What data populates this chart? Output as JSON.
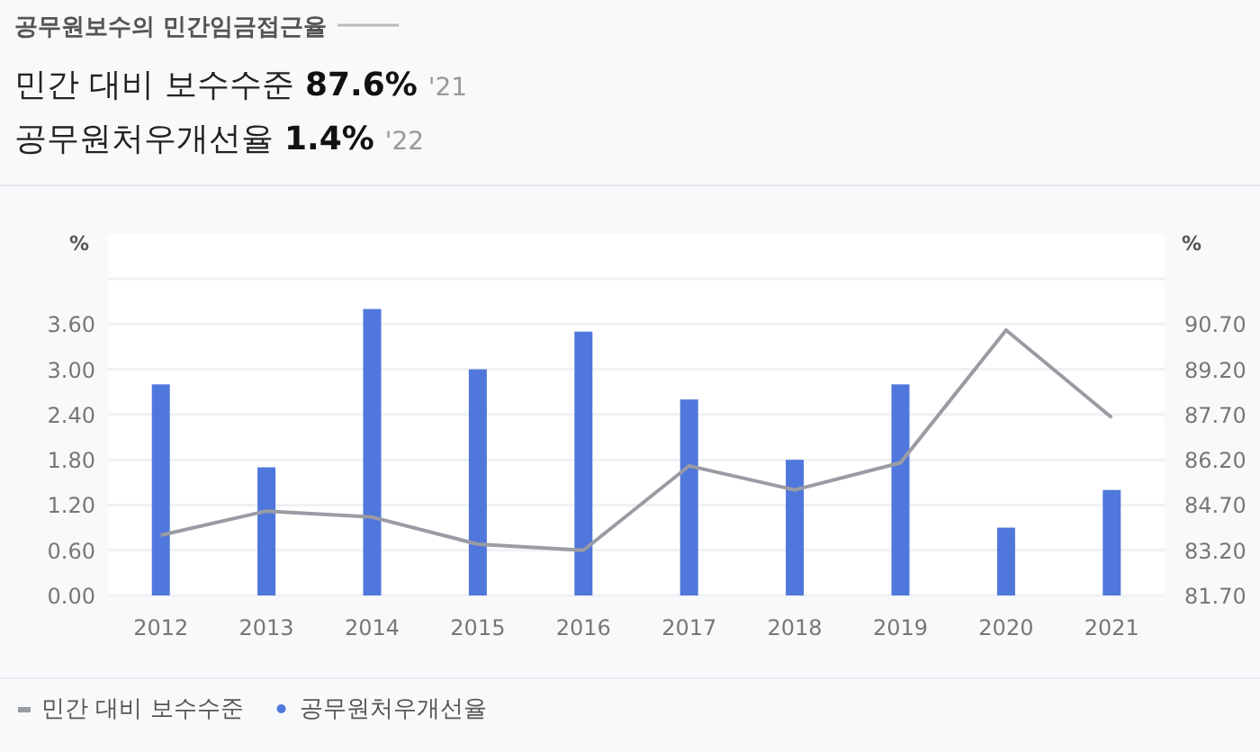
{
  "chart_data": {
    "type": "bar",
    "title": "공무원보수의 민간임금접근율",
    "annotations": [
      "민간 대비 보수수준",
      "87.6%",
      "'21",
      "공무원처우개선율",
      "1.4%",
      "'22"
    ],
    "categories": [
      "2012",
      "2013",
      "2014",
      "2015",
      "2016",
      "2017",
      "2018",
      "2019",
      "2020",
      "2021"
    ],
    "series": [
      {
        "name": "민간 대비 보수수준",
        "type": "line",
        "axis": "y2",
        "color": "#9a9ca3",
        "values": [
          83.7,
          84.5,
          84.3,
          83.4,
          83.2,
          86.0,
          85.2,
          86.1,
          90.5,
          87.6
        ]
      },
      {
        "name": "공무원처우개선율",
        "color": "#5077db",
        "values": [
          2.8,
          1.7,
          3.8,
          3.0,
          3.5,
          2.6,
          1.8,
          2.8,
          0.9,
          1.4
        ]
      }
    ],
    "ylabel": "%",
    "y2label": "%",
    "ylim": [
      0,
      4.2
    ],
    "yticks": [
      {
        "value": 0,
        "label": "0.00"
      },
      {
        "value": 0.6,
        "label": "0.60"
      },
      {
        "value": 1.2,
        "label": "1.20"
      },
      {
        "value": 1.8,
        "label": "1.80"
      },
      {
        "value": 2.4,
        "label": "2.40"
      },
      {
        "value": 3.0,
        "label": "3.00"
      },
      {
        "value": 3.6,
        "label": "3.60"
      },
      {
        "value": 4.2,
        "label": null
      }
    ],
    "y2lim": [
      81.7,
      92.2
    ],
    "y2ticks": [
      {
        "value": 81.7,
        "label": "81.70"
      },
      {
        "value": 83.2,
        "label": "83.20"
      },
      {
        "value": 84.7,
        "label": "84.70"
      },
      {
        "value": 86.2,
        "label": "86.20"
      },
      {
        "value": 87.7,
        "label": "87.70"
      },
      {
        "value": 89.2,
        "label": "89.20"
      },
      {
        "value": 90.7,
        "label": "90.70"
      },
      {
        "value": 92.2,
        "label": null
      }
    ],
    "grid": "y",
    "legend": "bottom left"
  }
}
